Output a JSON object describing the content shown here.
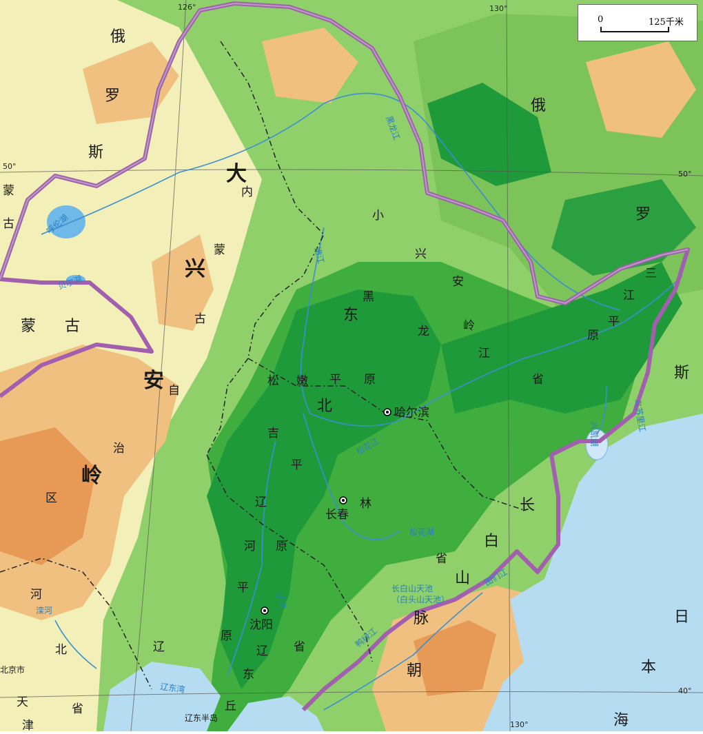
{
  "scale": {
    "zero": "0",
    "value": "125千米"
  },
  "coords": {
    "lon126": "126°",
    "lon130": "130°",
    "lon130b": "130°",
    "lat50_left": "50°",
    "lat50_right": "50°",
    "lat40": "40°"
  },
  "labels": {
    "eluosi_1": "俄",
    "eluosi_2": "罗",
    "eluosi_3": "斯",
    "eluosi_e1": "俄",
    "eluosi_e2": "罗",
    "eluosi_e3": "斯",
    "menggu_v1": "蒙",
    "menggu_v2": "古",
    "menggu_h1": "蒙",
    "menggu_h2": "古",
    "da": "大",
    "xinganling_da_xing": "兴",
    "xinganling_da_an": "安",
    "xinganling_da_ling": "岭",
    "nei": "内",
    "meng": "蒙",
    "gu2": "古",
    "zi": "自",
    "zhi": "治",
    "qu": "区",
    "xiao": "小",
    "xiao_xing": "兴",
    "xiao_an": "安",
    "xiao_ling": "岭",
    "dongbei_dong": "东",
    "dongbei_bei": "北",
    "hei": "黑",
    "long": "龙",
    "jiang": "江",
    "sheng_h": "省",
    "song": "松",
    "nen": "嫩",
    "ping_s": "平",
    "yuan_s": "原",
    "ji": "吉",
    "ping_j": "平",
    "lin": "林",
    "liao_r": "辽",
    "he_r": "河",
    "yuan_r": "原",
    "ping_r": "平",
    "yuan2_r": "原",
    "sanjiang_1": "三",
    "sanjiang_2": "江",
    "sanjiang_3": "平",
    "sanjiang_4": "原",
    "changbai_1": "长",
    "changbai_2": "白",
    "changbai_3": "山",
    "changbai_4": "脉",
    "jilin_sheng": "省",
    "liaoning_liao": "辽",
    "liaoning_sheng": "省",
    "liaodong_liao": "辽",
    "liaodong_dong": "东",
    "liaodong_qiu": "丘",
    "hebei_he": "河",
    "hebei_bei": "北",
    "hebei_sheng": "省",
    "beijing": "北京市",
    "chao": "朝",
    "riben_ri": "日",
    "riben_ben": "本",
    "hai": "海",
    "tianjin_tian": "天",
    "tianjin_jin": "津"
  },
  "cities": {
    "harbin": "哈尔滨",
    "changchun": "长春",
    "shenyang": "沈阳"
  },
  "water": {
    "hulunhu": "呼伦湖",
    "beiernu": "贝尔湖",
    "heilongjiang": "黑龙江",
    "nenjiang": "嫩江",
    "songhuajiang": "松花江",
    "wusulijiang": "乌苏里江",
    "xingkaihu": "兴凯湖",
    "songhuahu": "松花湖",
    "tianchi_1": "长白山天池",
    "tianchi_2": "（白头山天池）",
    "liaodongwan": "辽东湾",
    "yalujiang": "鸭绿江",
    "tumenjiang": "图们江",
    "luanhe": "滦河",
    "liaohe": "辽河"
  },
  "peninsula": "辽东半岛",
  "colors": {
    "lowland": "#1f9a3a",
    "plain": "#3fae3f",
    "hills": "#8fd06a",
    "upland": "#f5efb8",
    "mountain": "#f0c080",
    "high": "#e79a55",
    "sea": "#b6dcf2",
    "border": "#a25fae"
  }
}
